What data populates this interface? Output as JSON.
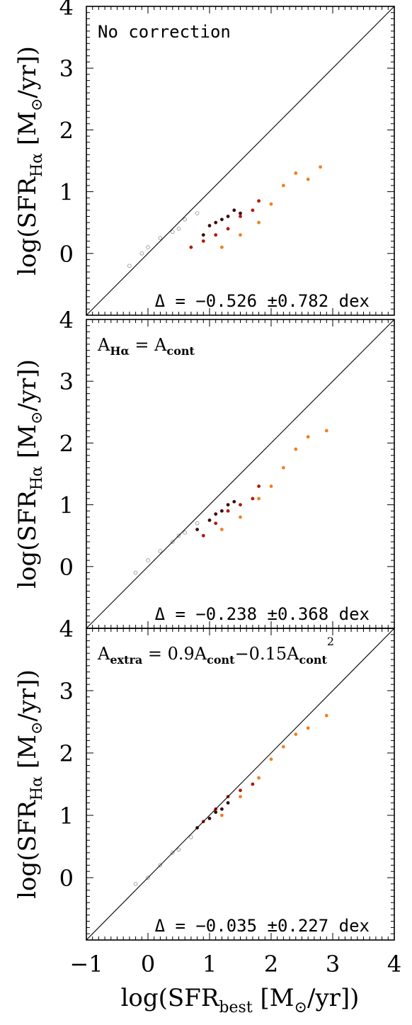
{
  "chart_data": [
    {
      "type": "scatter",
      "panel": "top",
      "annotation_parts": [
        {
          "t": "No correction"
        }
      ],
      "stat_text": "Δ = −0.526 ±0.782 dex",
      "ylabel_main": "log(SFR",
      "ylabel_sub": "Hα",
      "ylabel_units": " [M",
      "ylabel_sun": "⊙",
      "ylabel_tail": "/yr])",
      "xlim": [
        -1,
        4
      ],
      "ylim": [
        -1,
        4
      ],
      "yticks": [
        0,
        1,
        2,
        3,
        4
      ],
      "reference_line": "y = x",
      "mean_offset": -0.526,
      "scatter": 0.782,
      "series": [
        {
          "name": "gray",
          "color": "#8c8c8c",
          "points": [
            [
              -0.3,
              -0.2
            ],
            [
              -0.1,
              0.0
            ],
            [
              0.0,
              0.1
            ],
            [
              0.2,
              0.25
            ],
            [
              0.4,
              0.35
            ],
            [
              0.5,
              0.4
            ],
            [
              0.6,
              0.55
            ],
            [
              0.8,
              0.65
            ]
          ]
        },
        {
          "name": "dark",
          "color": "#3a0a0a",
          "points": [
            [
              0.9,
              0.3
            ],
            [
              1.0,
              0.45
            ],
            [
              1.1,
              0.5
            ],
            [
              1.2,
              0.55
            ],
            [
              1.3,
              0.6
            ],
            [
              1.4,
              0.7
            ],
            [
              1.5,
              0.65
            ]
          ]
        },
        {
          "name": "red",
          "color": "#b01a08",
          "points": [
            [
              0.7,
              0.1
            ],
            [
              0.9,
              0.2
            ],
            [
              1.1,
              0.3
            ],
            [
              1.3,
              0.4
            ],
            [
              1.5,
              0.6
            ],
            [
              1.7,
              0.7
            ],
            [
              1.8,
              0.85
            ]
          ]
        },
        {
          "name": "orange",
          "color": "#f08020",
          "points": [
            [
              1.2,
              0.1
            ],
            [
              1.5,
              0.3
            ],
            [
              1.8,
              0.5
            ],
            [
              2.0,
              0.8
            ],
            [
              2.2,
              1.1
            ],
            [
              2.4,
              1.3
            ],
            [
              2.6,
              1.2
            ],
            [
              2.8,
              1.4
            ]
          ]
        }
      ]
    },
    {
      "type": "scatter",
      "panel": "middle",
      "annotation_parts": [
        {
          "t": "A"
        },
        {
          "t": "Hα",
          "sub": true
        },
        {
          "t": " = A"
        },
        {
          "t": "cont",
          "sub": true
        }
      ],
      "stat_text": "Δ = −0.238 ±0.368 dex",
      "ylabel_main": "log(SFR",
      "ylabel_sub": "Hα",
      "ylabel_units": " [M",
      "ylabel_sun": "⊙",
      "ylabel_tail": "/yr])",
      "xlim": [
        -1,
        4
      ],
      "ylim": [
        -1,
        4
      ],
      "yticks": [
        0,
        1,
        2,
        3,
        4
      ],
      "reference_line": "y = x",
      "mean_offset": -0.238,
      "scatter": 0.368,
      "series": [
        {
          "name": "gray",
          "color": "#8c8c8c",
          "points": [
            [
              -0.2,
              -0.1
            ],
            [
              0.0,
              0.1
            ],
            [
              0.2,
              0.25
            ],
            [
              0.4,
              0.4
            ],
            [
              0.5,
              0.5
            ],
            [
              0.6,
              0.55
            ],
            [
              0.8,
              0.7
            ]
          ]
        },
        {
          "name": "dark",
          "color": "#3a0a0a",
          "points": [
            [
              0.8,
              0.6
            ],
            [
              1.0,
              0.75
            ],
            [
              1.1,
              0.85
            ],
            [
              1.2,
              0.9
            ],
            [
              1.3,
              1.0
            ],
            [
              1.4,
              1.05
            ]
          ]
        },
        {
          "name": "red",
          "color": "#b01a08",
          "points": [
            [
              0.9,
              0.5
            ],
            [
              1.1,
              0.7
            ],
            [
              1.3,
              0.9
            ],
            [
              1.5,
              1.0
            ],
            [
              1.7,
              1.1
            ],
            [
              1.8,
              1.3
            ]
          ]
        },
        {
          "name": "orange",
          "color": "#f08020",
          "points": [
            [
              1.2,
              0.6
            ],
            [
              1.5,
              0.8
            ],
            [
              1.8,
              1.1
            ],
            [
              2.0,
              1.3
            ],
            [
              2.2,
              1.6
            ],
            [
              2.4,
              1.9
            ],
            [
              2.6,
              2.1
            ],
            [
              2.9,
              2.2
            ]
          ]
        }
      ]
    },
    {
      "type": "scatter",
      "panel": "bottom",
      "annotation_parts": [
        {
          "t": "A"
        },
        {
          "t": "extra",
          "sub": true
        },
        {
          "t": " = 0.9A"
        },
        {
          "t": "cont",
          "sub": true
        },
        {
          "t": "−0.15A"
        },
        {
          "t": "cont",
          "sub": true
        },
        {
          "t": "2",
          "sup": true
        }
      ],
      "stat_text": "Δ = −0.035 ±0.227 dex",
      "ylabel_main": "log(SFR",
      "ylabel_sub": "Hα",
      "ylabel_units": " [M",
      "ylabel_sun": "⊙",
      "ylabel_tail": "/yr])",
      "xlabel_main": "log(SFR",
      "xlabel_sub": "best",
      "xlabel_units": " [M",
      "xlabel_sun": "⊙",
      "xlabel_tail": "/yr])",
      "xlim": [
        -1,
        4
      ],
      "ylim": [
        -1,
        4
      ],
      "xticks": [
        -1,
        0,
        1,
        2,
        3,
        4
      ],
      "yticks": [
        0,
        1,
        2,
        3,
        4
      ],
      "reference_line": "y = x",
      "mean_offset": -0.035,
      "scatter": 0.227,
      "series": [
        {
          "name": "gray",
          "color": "#8c8c8c",
          "points": [
            [
              -0.2,
              -0.1
            ],
            [
              0.0,
              0.0
            ],
            [
              0.2,
              0.2
            ],
            [
              0.4,
              0.4
            ],
            [
              0.5,
              0.45
            ],
            [
              0.7,
              0.65
            ]
          ]
        },
        {
          "name": "dark",
          "color": "#3a0a0a",
          "points": [
            [
              0.8,
              0.8
            ],
            [
              1.0,
              0.95
            ],
            [
              1.1,
              1.05
            ],
            [
              1.2,
              1.1
            ],
            [
              1.3,
              1.2
            ]
          ]
        },
        {
          "name": "red",
          "color": "#b01a08",
          "points": [
            [
              0.9,
              0.9
            ],
            [
              1.1,
              1.1
            ],
            [
              1.3,
              1.3
            ],
            [
              1.5,
              1.4
            ],
            [
              1.7,
              1.5
            ]
          ]
        },
        {
          "name": "orange",
          "color": "#f08020",
          "points": [
            [
              1.2,
              1.0
            ],
            [
              1.5,
              1.3
            ],
            [
              1.8,
              1.6
            ],
            [
              2.0,
              1.9
            ],
            [
              2.2,
              2.1
            ],
            [
              2.4,
              2.3
            ],
            [
              2.6,
              2.4
            ],
            [
              2.9,
              2.6
            ]
          ]
        }
      ]
    }
  ]
}
